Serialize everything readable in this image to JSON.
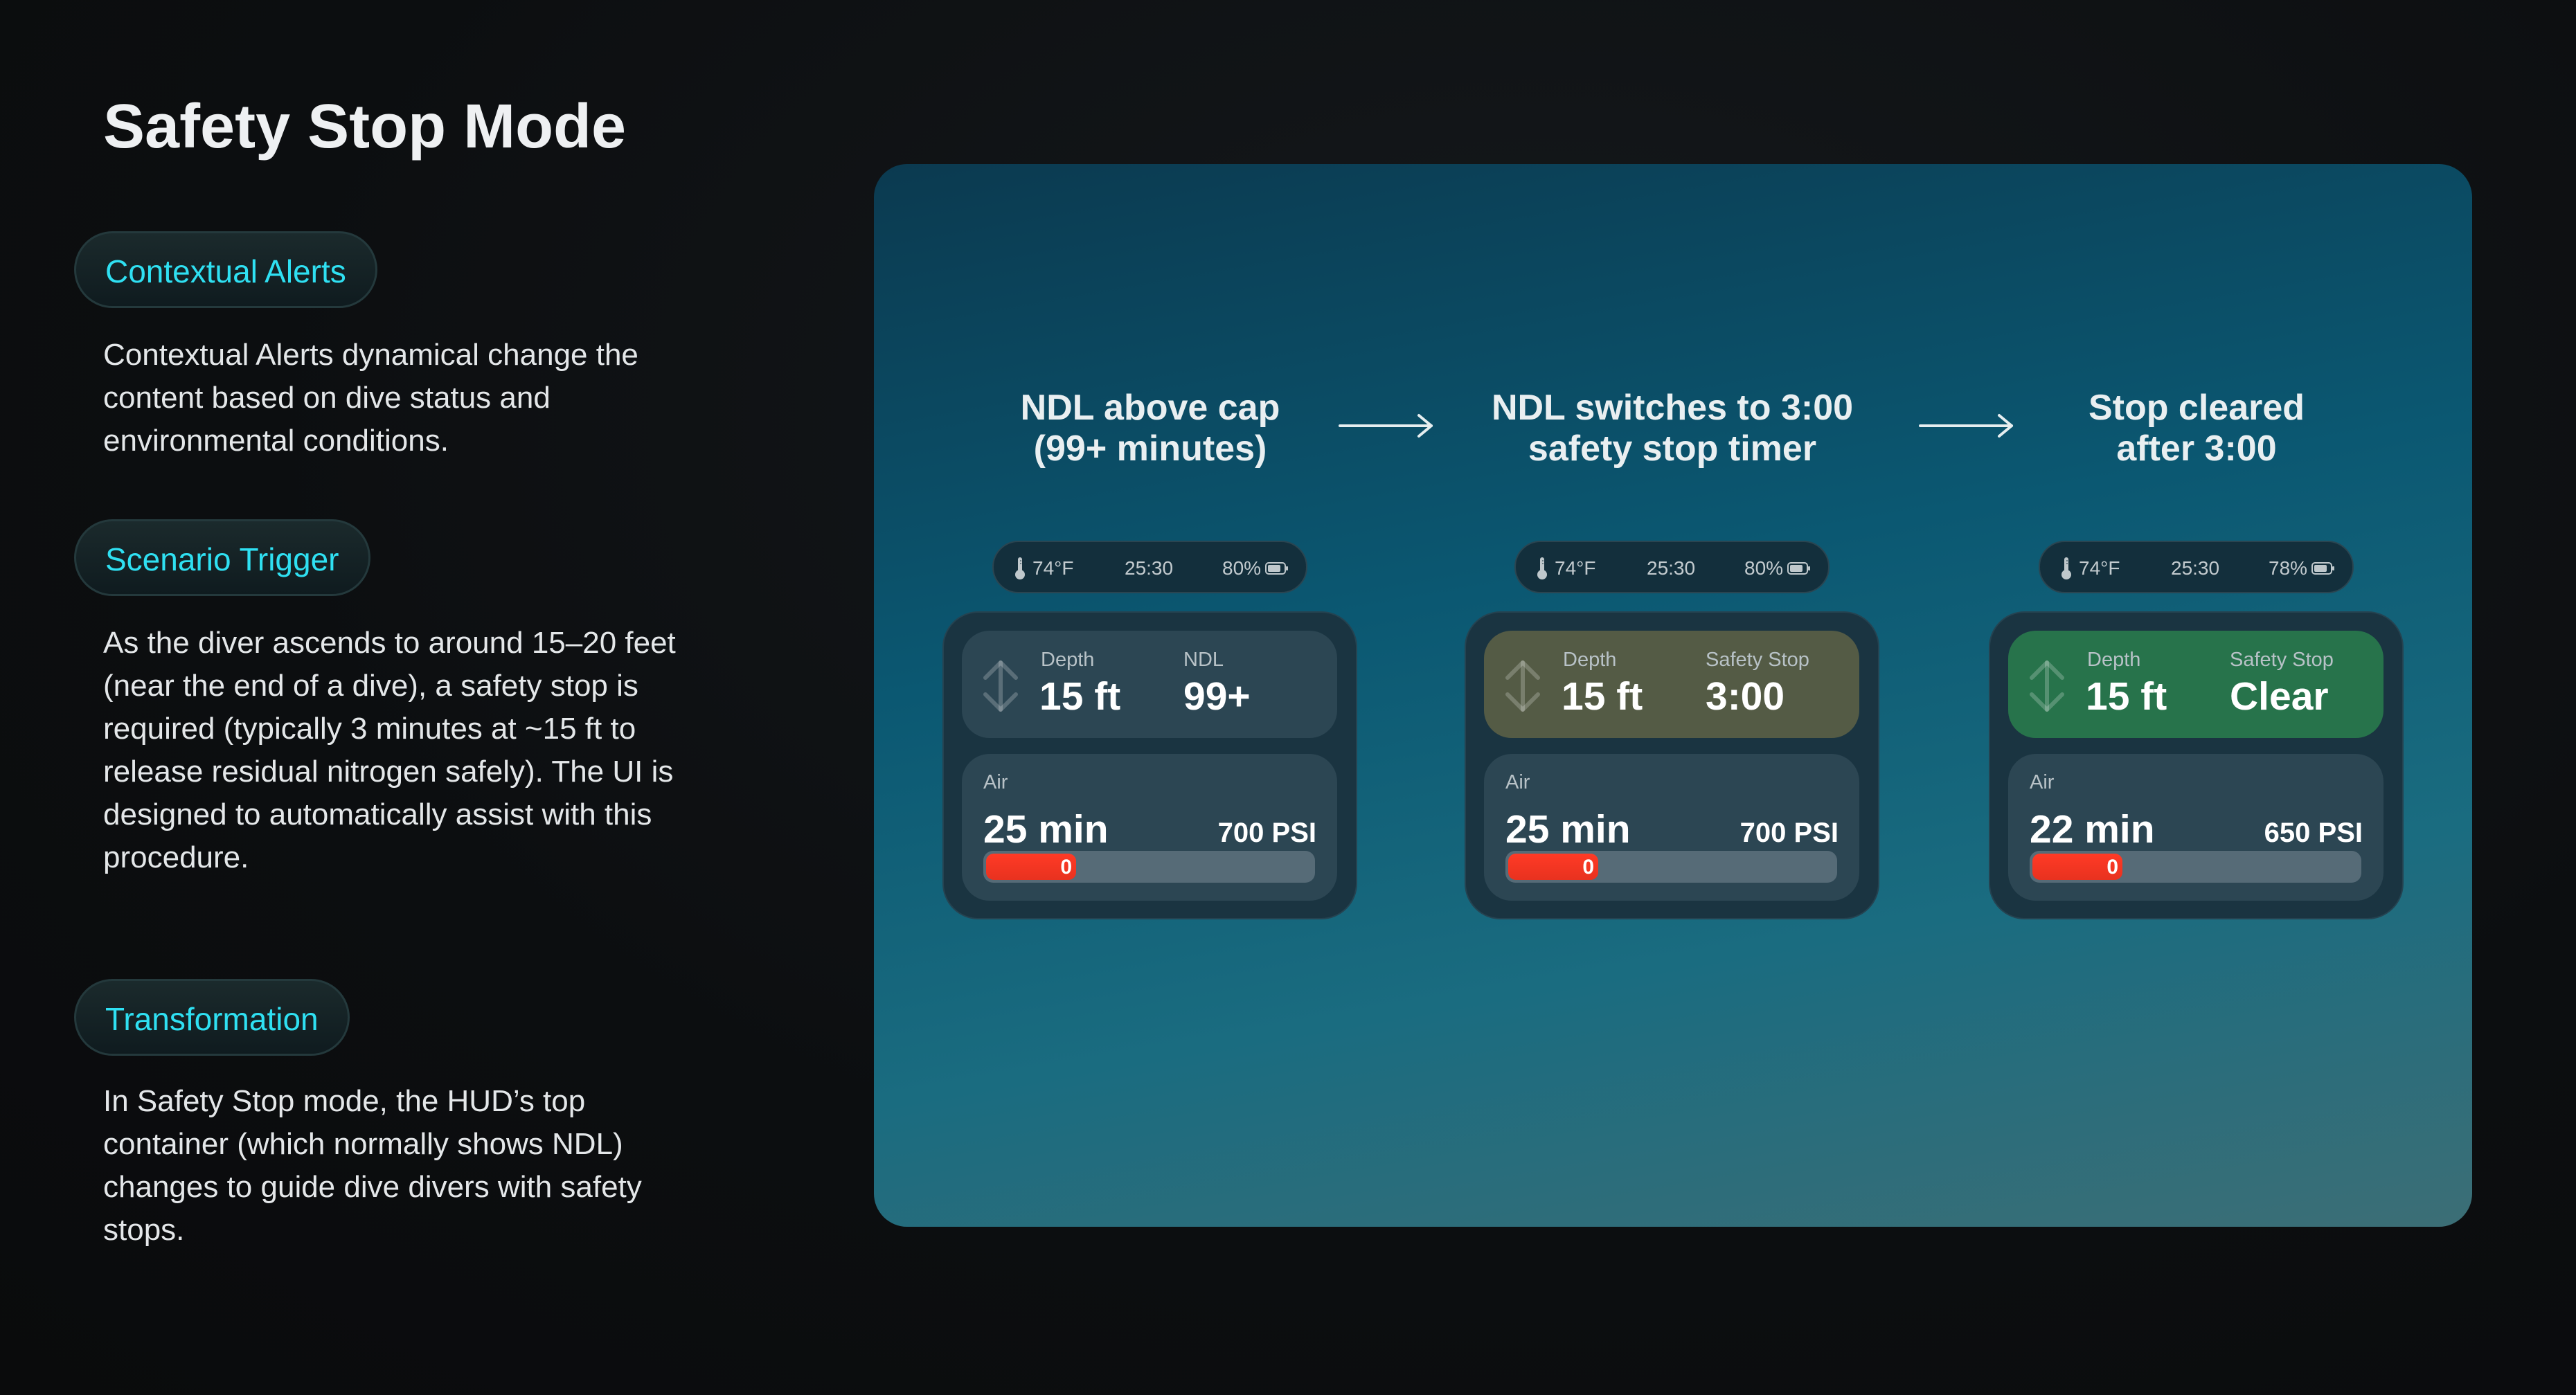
{
  "title": "Safety Stop Mode",
  "sections": [
    {
      "label": "Contextual Alerts",
      "text": "Contextual Alerts dynamical change the content based on dive status and environmental conditions."
    },
    {
      "label": "Scenario Trigger",
      "text": "As the diver ascends to around 15–20 feet (near the end of a dive), a safety stop is required (typically 3 minutes at ~15 ft to release residual nitrogen safely). The UI is designed to automatically assist with this procedure."
    },
    {
      "label": "Transformation",
      "text": "In Safety Stop mode, the HUD’s top container (which normally shows NDL) changes to guide dive divers with safety stops."
    }
  ],
  "colors": {
    "accent": "#2fe0f2",
    "alert_fill": "#ff3a26",
    "safety_stop_box": "#545b45",
    "clear_box": "#27734b",
    "default_box": "#2c4653"
  },
  "steps": [
    {
      "caption_line1": "NDL above cap",
      "caption_line2": "(99+ minutes)",
      "status": {
        "temp": "74°F",
        "time": "25:30",
        "battery": "80%",
        "temp_icon": "thermometer-icon",
        "battery_icon": "battery-icon"
      },
      "depth_label": "Depth",
      "depth_value": "15 ft",
      "right_label": "NDL",
      "right_value": "99+",
      "box_state": "default",
      "air_label": "Air",
      "air_value": "25 min",
      "pressure": "700 PSI",
      "bar_label": "0",
      "bar_fill_percent": 28
    },
    {
      "caption_line1": "NDL switches to 3:00",
      "caption_line2": "safety stop timer",
      "status": {
        "temp": "74°F",
        "time": "25:30",
        "battery": "80%",
        "temp_icon": "thermometer-icon",
        "battery_icon": "battery-icon"
      },
      "depth_label": "Depth",
      "depth_value": "15 ft",
      "right_label": "Safety Stop",
      "right_value": "3:00",
      "box_state": "safety-stop",
      "air_label": "Air",
      "air_value": "25 min",
      "pressure": "700 PSI",
      "bar_label": "0",
      "bar_fill_percent": 28
    },
    {
      "caption_line1": "Stop cleared",
      "caption_line2": "after 3:00",
      "status": {
        "temp": "74°F",
        "time": "25:30",
        "battery": "78%",
        "temp_icon": "thermometer-icon",
        "battery_icon": "battery-icon"
      },
      "depth_label": "Depth",
      "depth_value": "15 ft",
      "right_label": "Safety Stop",
      "right_value": "Clear",
      "box_state": "clear",
      "air_label": "Air",
      "air_value": "22 min",
      "pressure": "650 PSI",
      "bar_label": "0",
      "bar_fill_percent": 28
    }
  ]
}
